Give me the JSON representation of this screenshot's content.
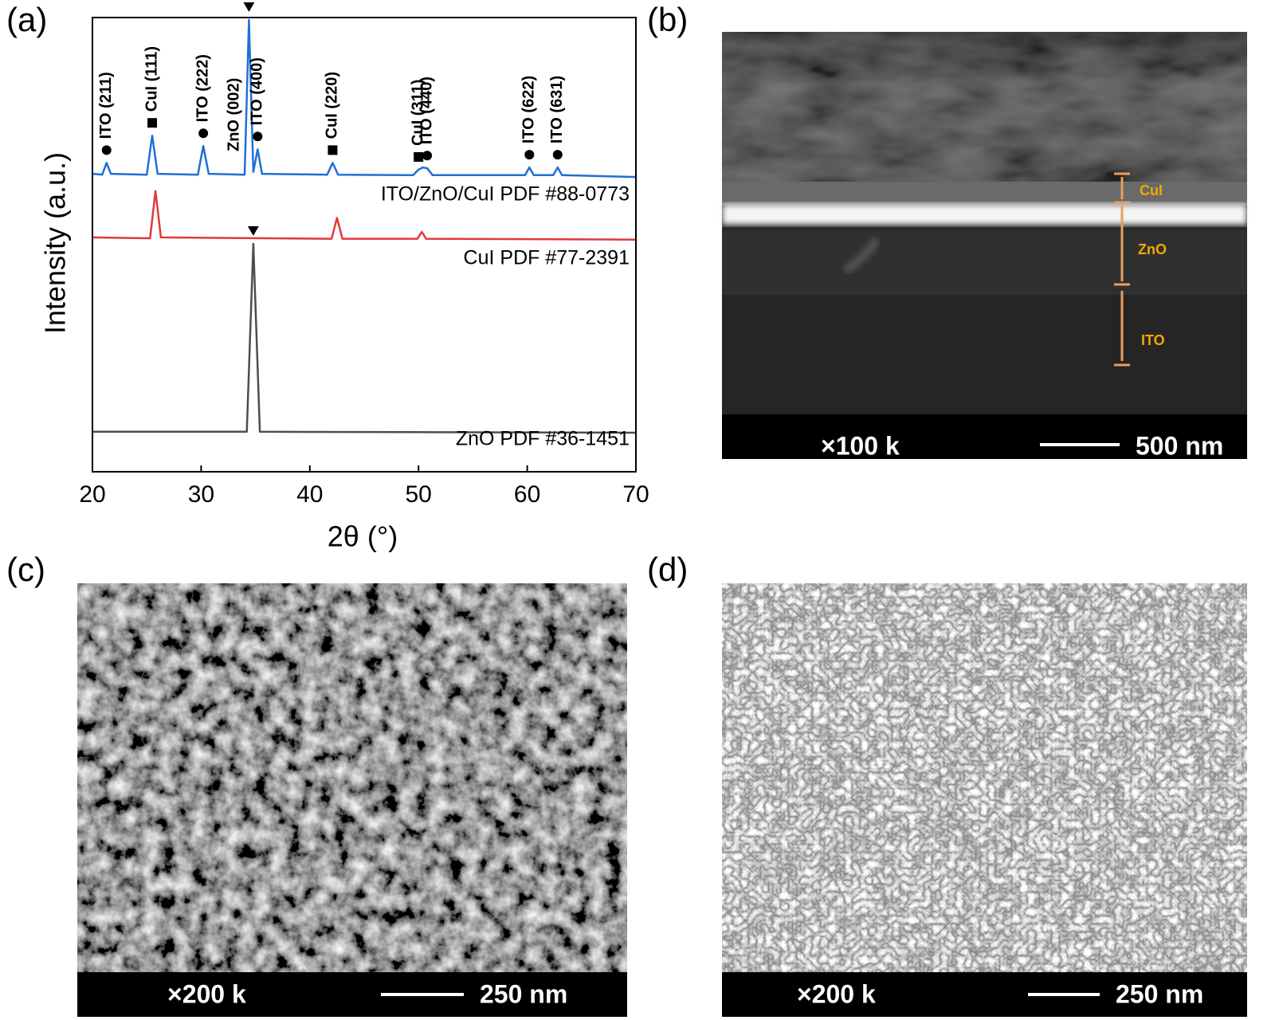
{
  "chart_data": {
    "type": "line",
    "panel_label": "(a)",
    "x_label": "2θ (°)",
    "y_label": "Intensity (a.u.)",
    "xlim": [
      20,
      70
    ],
    "xticks": [
      20,
      30,
      40,
      50,
      60,
      70
    ],
    "ylim": [
      0,
      100
    ],
    "series": [
      {
        "name": "ITO/ZnO/CuI PDF #88-0773",
        "color": "#1f6fd6",
        "x": [
          20,
          20.9,
          21.3,
          21.7,
          25.0,
          25.5,
          26.0,
          29.7,
          30.2,
          30.7,
          34.0,
          34.4,
          34.8,
          35.2,
          35.6,
          41.6,
          42.1,
          42.6,
          49.5,
          50.0,
          50.4,
          50.8,
          51.3,
          59.8,
          60.2,
          60.6,
          62.4,
          62.8,
          63.2,
          70
        ],
        "values": [
          65.6,
          65.4,
          68,
          65.6,
          65.4,
          74,
          65.6,
          65.4,
          71.7,
          65.6,
          65.4,
          99.5,
          66,
          71,
          65.6,
          65.4,
          68,
          65.4,
          65.3,
          66.5,
          67,
          66.8,
          65.3,
          65.3,
          67,
          65.3,
          65.3,
          67,
          65.3,
          64.9
        ]
      },
      {
        "name": "CuI PDF #77-2391",
        "color": "#e0393b",
        "x": [
          20,
          25.3,
          25.8,
          26.3,
          42.0,
          42.5,
          43.0,
          49.9,
          50.3,
          50.7,
          70
        ],
        "values": [
          51.6,
          51.4,
          61.8,
          51.6,
          51.3,
          55.9,
          51.3,
          51.3,
          52.8,
          51.3,
          51.1
        ]
      },
      {
        "name": "ZnO PDF #36-1451",
        "color": "#4d4d4d",
        "x": [
          20,
          34.2,
          34.8,
          35.4,
          70
        ],
        "values": [
          8.8,
          8.8,
          50.2,
          8.8,
          8.6
        ]
      }
    ],
    "peak_labels": [
      {
        "label": "ITO (211)",
        "x": 21.3,
        "series": 0,
        "marker": "circle"
      },
      {
        "label": "CuI (111)",
        "x": 25.5,
        "series": 0,
        "marker": "square"
      },
      {
        "label": "ITO (222)",
        "x": 30.2,
        "series": 0,
        "marker": "circle"
      },
      {
        "label": "ZnO (002)",
        "x": 34.4,
        "series": 0,
        "marker": "triangle"
      },
      {
        "label": "ITO (400)",
        "x": 35.2,
        "series": 0,
        "marker": "circle"
      },
      {
        "label": "CuI (220)",
        "x": 42.1,
        "series": 0,
        "marker": "square"
      },
      {
        "label": "CuI (311)",
        "x": 50.0,
        "series": 0,
        "marker": "square"
      },
      {
        "label": "ITO (440)",
        "x": 50.8,
        "series": 0,
        "marker": "circle"
      },
      {
        "label": "ITO (622)",
        "x": 60.2,
        "series": 0,
        "marker": "circle"
      },
      {
        "label": "ITO (631)",
        "x": 62.8,
        "series": 0,
        "marker": "circle"
      },
      {
        "x": 34.8,
        "series": 2,
        "marker": "triangle"
      }
    ]
  },
  "images": [
    {
      "panel_label": "(b)",
      "magnification": "×100 k",
      "scale_bar": "500 nm",
      "layers": [
        "CuI",
        "ZnO",
        "ITO"
      ]
    },
    {
      "panel_label": "(c)",
      "magnification": "×200 k",
      "scale_bar": "250 nm"
    },
    {
      "panel_label": "(d)",
      "magnification": "×200 k",
      "scale_bar": "250 nm"
    }
  ]
}
